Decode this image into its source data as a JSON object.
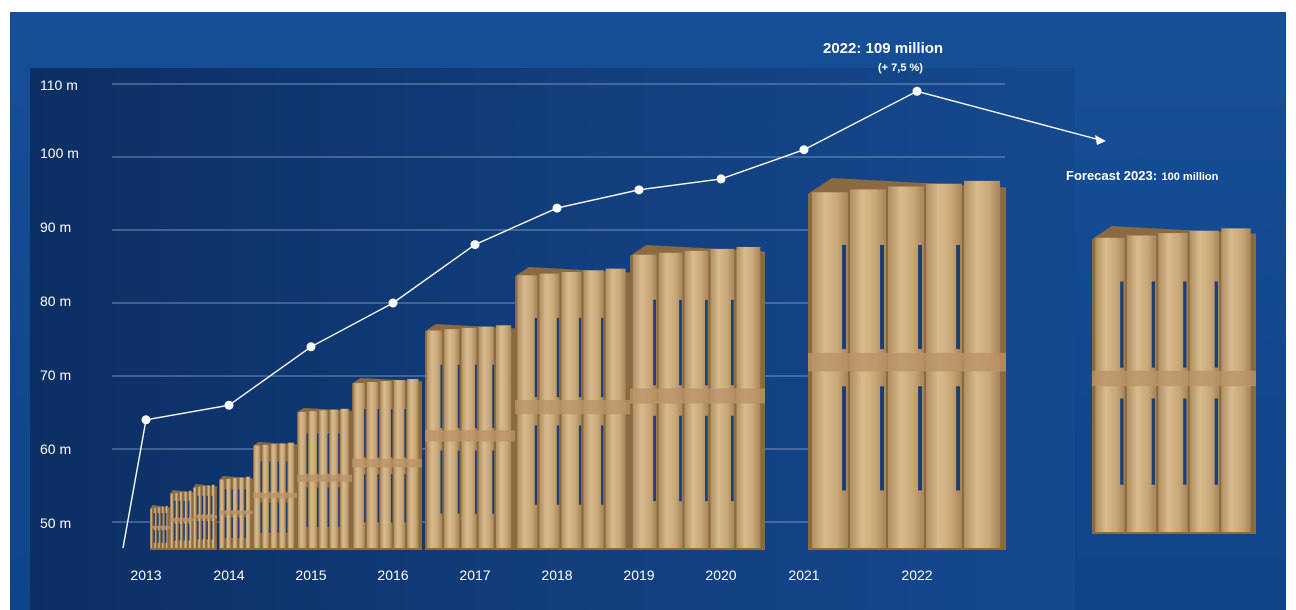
{
  "chart_data": {
    "type": "line",
    "x": [
      "2013",
      "2014",
      "2015",
      "2016",
      "2017",
      "2018",
      "2019",
      "2020",
      "2021",
      "2022"
    ],
    "values": [
      64,
      66,
      74,
      80,
      88,
      93,
      95.5,
      97,
      101,
      109
    ],
    "yticks": [
      "50 m",
      "60 m",
      "70 m",
      "80 m",
      "90 m",
      "100 m",
      "110 m"
    ],
    "ylim": [
      45,
      112
    ],
    "grid": true,
    "legend": "none",
    "annotation_2022": {
      "title": "2022:  109 million",
      "subtitle": "(+ 7,5 %)"
    },
    "forecast": {
      "label": "Forecast 2023:",
      "value_label": "100 million",
      "value": 100
    },
    "colors": {
      "background": "#124a8f",
      "plot_dark": "#0b2f63",
      "line": "#ffffff",
      "grid": "#9fb6d8",
      "pallet_wood": "#c9a878",
      "pallet_shadow": "#8a6a42"
    }
  }
}
